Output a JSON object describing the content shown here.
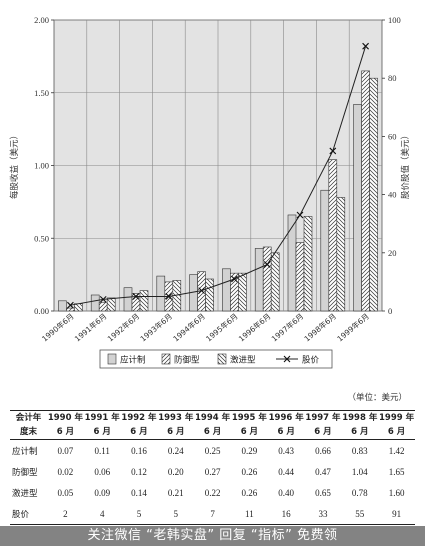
{
  "chart_data": {
    "type": "bar",
    "categories": [
      "1990年6月",
      "1991年6月",
      "1992年6月",
      "1993年6月",
      "1994年6月",
      "1995年6月",
      "1996年6月",
      "1997年6月",
      "1998年6月",
      "1999年6月"
    ],
    "series": [
      {
        "name": "应计制",
        "kind": "bar",
        "axis": "left",
        "pattern": "light-gray",
        "values": [
          0.07,
          0.11,
          0.16,
          0.24,
          0.25,
          0.29,
          0.43,
          0.66,
          0.83,
          1.42
        ]
      },
      {
        "name": "防御型",
        "kind": "bar",
        "axis": "left",
        "pattern": "diagonal-hatch",
        "values": [
          0.02,
          0.06,
          0.12,
          0.2,
          0.27,
          0.26,
          0.44,
          0.47,
          1.04,
          1.65
        ]
      },
      {
        "name": "激进型",
        "kind": "bar",
        "axis": "left",
        "pattern": "cross-hatch",
        "values": [
          0.05,
          0.09,
          0.14,
          0.21,
          0.22,
          0.26,
          0.4,
          0.65,
          0.78,
          1.6
        ]
      },
      {
        "name": "股价",
        "kind": "line",
        "axis": "right",
        "marker": "x",
        "values": [
          2,
          4,
          5,
          5,
          7,
          11,
          16,
          33,
          55,
          91
        ]
      }
    ],
    "ylabel": "每股收益（美元）",
    "y2label": "股价股值（美元）",
    "ylim": [
      0,
      2.0
    ],
    "y2lim": [
      0,
      100
    ],
    "yticks": [
      "0.00",
      "0.50",
      "1.00",
      "1.50",
      "2.00"
    ],
    "y2ticks": [
      "0",
      "20",
      "40",
      "60",
      "80",
      "100"
    ],
    "grid": true,
    "legend_position": "bottom"
  },
  "unit_note": "（单位：美元）",
  "table": {
    "corner_top": "会计年",
    "corner_bottom": "度末",
    "col_years": [
      "1990 年",
      "1991 年",
      "1992 年",
      "1993 年",
      "1994 年",
      "1995 年",
      "1996 年",
      "1997 年",
      "1998 年",
      "1999 年"
    ],
    "col_month": "6 月",
    "rows": [
      {
        "label": "应计制",
        "values": [
          "0.07",
          "0.11",
          "0.16",
          "0.24",
          "0.25",
          "0.29",
          "0.43",
          "0.66",
          "0.83",
          "1.42"
        ]
      },
      {
        "label": "防御型",
        "values": [
          "0.02",
          "0.06",
          "0.12",
          "0.20",
          "0.27",
          "0.26",
          "0.44",
          "0.47",
          "1.04",
          "1.65"
        ]
      },
      {
        "label": "激进型",
        "values": [
          "0.05",
          "0.09",
          "0.14",
          "0.21",
          "0.22",
          "0.26",
          "0.40",
          "0.65",
          "0.78",
          "1.60"
        ]
      },
      {
        "label": "股价",
        "values": [
          "2",
          "4",
          "5",
          "5",
          "7",
          "11",
          "16",
          "33",
          "55",
          "91"
        ]
      }
    ]
  },
  "watermark": "关注微信 “老韩实盘” 回复 “指标” 免费领"
}
